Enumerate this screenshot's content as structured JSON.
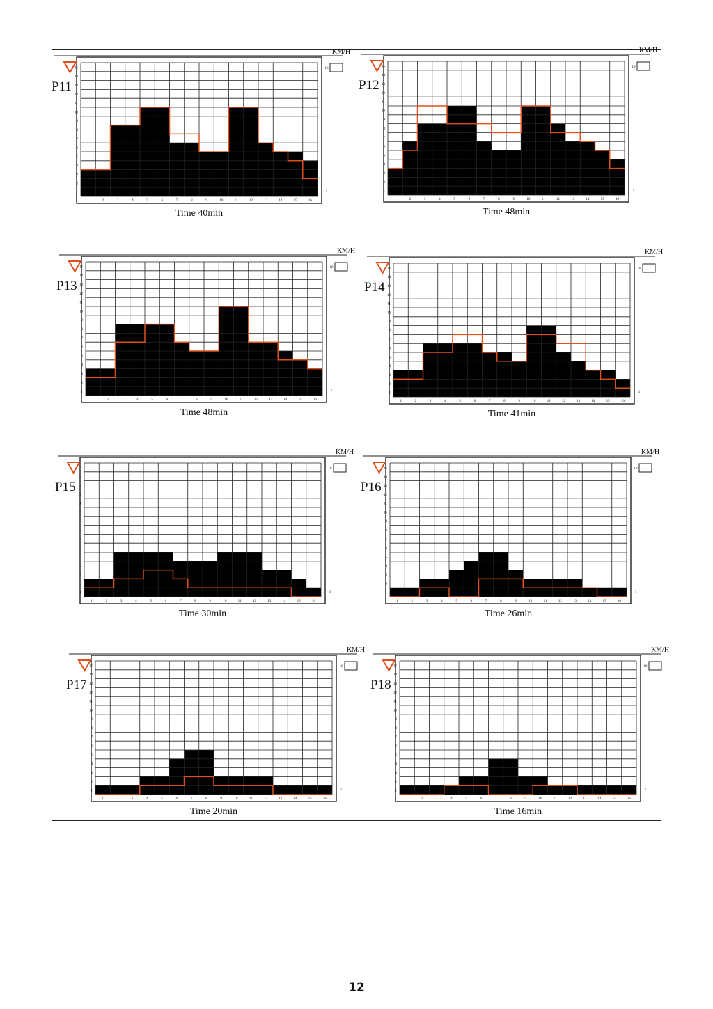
{
  "unit_label": "KM/H",
  "speed_setting_value": "18",
  "level_row_label": "1",
  "x_ticks": [
    "1",
    "2",
    "3",
    "4",
    "5",
    "6",
    "7",
    "8",
    "9",
    "10",
    "11",
    "12",
    "13",
    "14",
    "15",
    "16"
  ],
  "y_ticks": [
    "1",
    "2",
    "3",
    "4",
    "5",
    "6",
    "7",
    "8",
    "9",
    "10",
    "11",
    "12",
    "13",
    "14",
    "15"
  ],
  "colors": {
    "fill": "#000000",
    "overlay": "#e0501f",
    "grid": "#222222"
  },
  "page_number": "12",
  "chart_data": [
    {
      "type": "bar",
      "name": "P11",
      "title": "Time 40min",
      "ylim": [
        0,
        15
      ],
      "categories": [
        "1",
        "2",
        "3",
        "4",
        "5",
        "6",
        "7",
        "8",
        "9",
        "10",
        "11",
        "12",
        "13",
        "14",
        "15",
        "16"
      ],
      "values": [
        3,
        3,
        8,
        8,
        10,
        10,
        6,
        6,
        5,
        5,
        10,
        10,
        6,
        5,
        5,
        4
      ],
      "overlay": [
        3,
        3,
        8,
        8,
        10,
        10,
        7,
        7,
        5,
        5,
        10,
        10,
        6,
        5,
        4,
        2
      ]
    },
    {
      "type": "bar",
      "name": "P12",
      "title": "Time 48min",
      "ylim": [
        0,
        15
      ],
      "categories": [
        "1",
        "2",
        "3",
        "4",
        "5",
        "6",
        "7",
        "8",
        "9",
        "10",
        "11",
        "12",
        "13",
        "14",
        "15",
        "16"
      ],
      "values": [
        3,
        6,
        8,
        8,
        10,
        10,
        6,
        5,
        5,
        10,
        10,
        8,
        6,
        6,
        5,
        4
      ],
      "overlay": [
        3,
        5,
        10,
        10,
        8,
        8,
        8,
        7,
        7,
        10,
        10,
        7,
        7,
        6,
        5,
        3
      ]
    },
    {
      "type": "bar",
      "name": "P13",
      "title": "Time 48min",
      "ylim": [
        0,
        15
      ],
      "categories": [
        "1",
        "2",
        "3",
        "4",
        "5",
        "6",
        "7",
        "8",
        "9",
        "10",
        "11",
        "12",
        "13",
        "14",
        "15",
        "16"
      ],
      "values": [
        3,
        3,
        8,
        8,
        8,
        8,
        6,
        5,
        5,
        10,
        10,
        6,
        6,
        5,
        4,
        3
      ],
      "overlay": [
        2,
        2,
        6,
        6,
        8,
        8,
        6,
        5,
        5,
        10,
        10,
        6,
        6,
        4,
        4,
        3
      ]
    },
    {
      "type": "bar",
      "name": "P14",
      "title": "Time 41min",
      "ylim": [
        0,
        15
      ],
      "categories": [
        "1",
        "2",
        "3",
        "4",
        "5",
        "6",
        "7",
        "8",
        "9",
        "10",
        "11",
        "12",
        "13",
        "14",
        "15",
        "16"
      ],
      "values": [
        3,
        3,
        6,
        6,
        6,
        6,
        5,
        5,
        4,
        8,
        8,
        5,
        4,
        3,
        3,
        2
      ],
      "overlay": [
        2,
        2,
        5,
        5,
        7,
        7,
        5,
        4,
        4,
        7,
        7,
        6,
        6,
        3,
        2,
        1
      ]
    },
    {
      "type": "bar",
      "name": "P15",
      "title": "Time 30min",
      "ylim": [
        0,
        15
      ],
      "categories": [
        "1",
        "2",
        "3",
        "4",
        "5",
        "6",
        "7",
        "8",
        "9",
        "10",
        "11",
        "12",
        "13",
        "14",
        "15",
        "16"
      ],
      "values": [
        2,
        2,
        5,
        5,
        5,
        5,
        4,
        4,
        4,
        5,
        5,
        5,
        3,
        3,
        2,
        1
      ],
      "overlay": [
        1,
        1,
        2,
        2,
        3,
        3,
        2,
        1,
        1,
        1,
        1,
        1,
        1,
        1,
        0,
        0
      ]
    },
    {
      "type": "bar",
      "name": "P16",
      "title": "Time 26min",
      "ylim": [
        0,
        15
      ],
      "categories": [
        "1",
        "2",
        "3",
        "4",
        "5",
        "6",
        "7",
        "8",
        "9",
        "10",
        "11",
        "12",
        "13",
        "14",
        "15",
        "16"
      ],
      "values": [
        1,
        1,
        2,
        2,
        3,
        4,
        5,
        5,
        3,
        2,
        2,
        2,
        2,
        1,
        1,
        1
      ],
      "overlay": [
        0,
        0,
        1,
        1,
        0,
        0,
        2,
        2,
        2,
        1,
        1,
        1,
        1,
        1,
        0,
        0
      ]
    },
    {
      "type": "bar",
      "name": "P17",
      "title": "Time 20min",
      "ylim": [
        0,
        15
      ],
      "categories": [
        "1",
        "2",
        "3",
        "4",
        "5",
        "6",
        "7",
        "8",
        "9",
        "10",
        "11",
        "12",
        "13",
        "14",
        "15",
        "16"
      ],
      "values": [
        1,
        1,
        1,
        2,
        2,
        4,
        5,
        5,
        2,
        2,
        2,
        2,
        1,
        1,
        1,
        1
      ],
      "overlay": [
        0,
        0,
        0,
        1,
        1,
        1,
        2,
        2,
        1,
        1,
        1,
        1,
        0,
        0,
        0,
        0
      ]
    },
    {
      "type": "bar",
      "name": "P18",
      "title": "Time 16min",
      "ylim": [
        0,
        15
      ],
      "categories": [
        "1",
        "2",
        "3",
        "4",
        "5",
        "6",
        "7",
        "8",
        "9",
        "10",
        "11",
        "12",
        "13",
        "14",
        "15",
        "16"
      ],
      "values": [
        1,
        1,
        1,
        1,
        2,
        2,
        4,
        4,
        2,
        2,
        1,
        1,
        1,
        1,
        1,
        1
      ],
      "overlay": [
        0,
        0,
        0,
        1,
        1,
        1,
        0,
        0,
        0,
        1,
        1,
        1,
        0,
        0,
        0,
        0
      ]
    }
  ]
}
